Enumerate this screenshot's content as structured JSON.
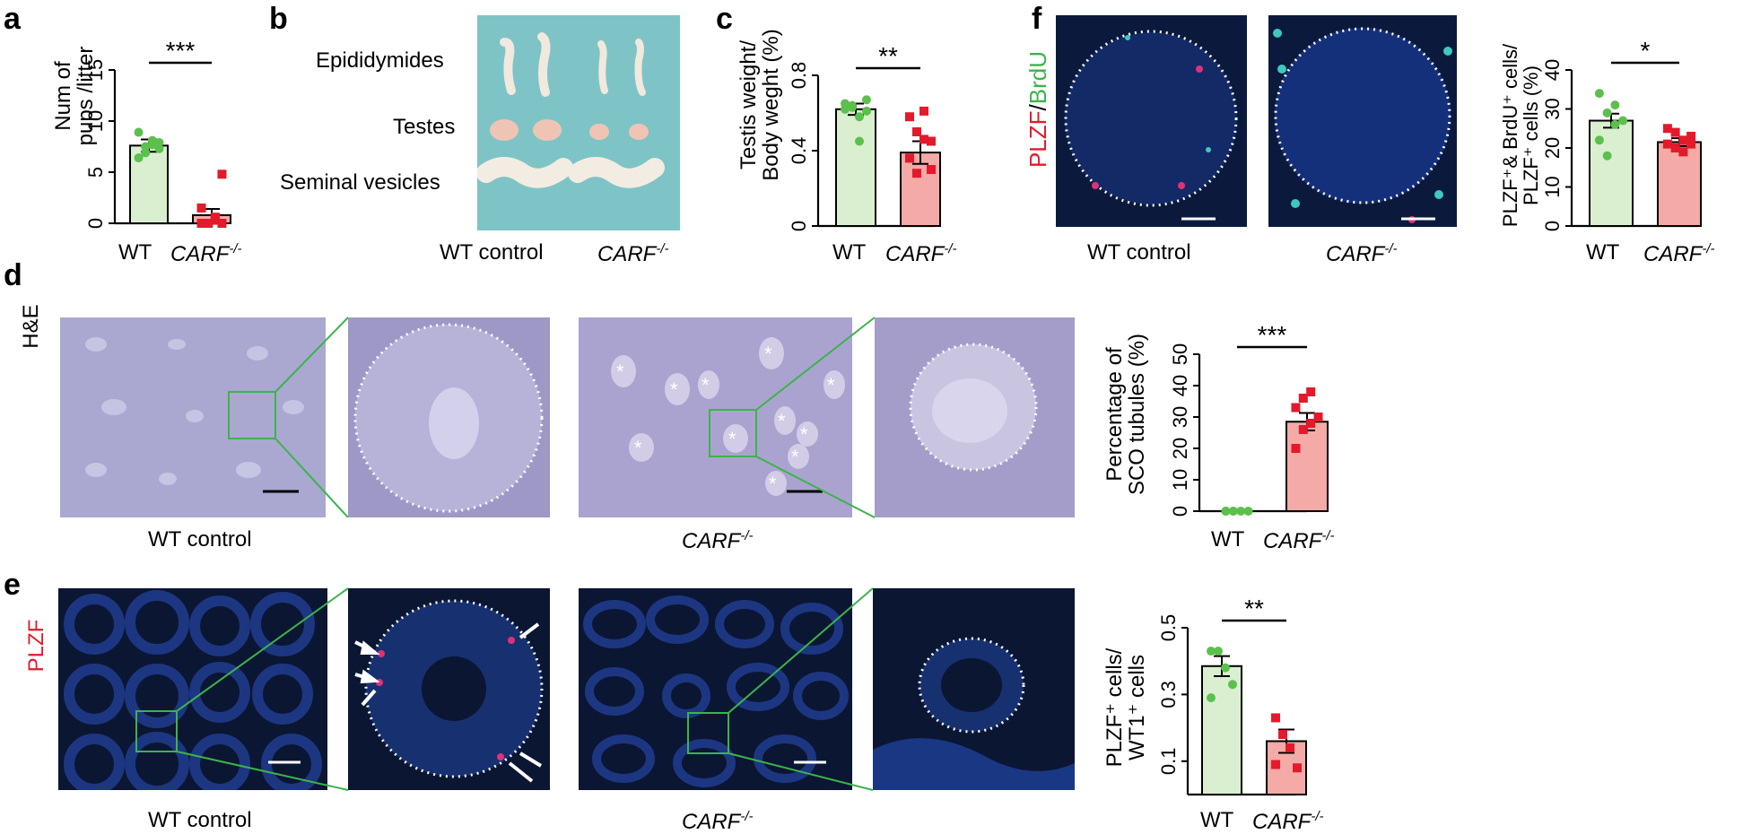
{
  "panels": {
    "a": "a",
    "b": "b",
    "c": "c",
    "d": "d",
    "e": "e",
    "f": "f"
  },
  "colors": {
    "wt_fill": "#d9efd0",
    "wt_dot": "#5cc04c",
    "ko_fill": "#f4aaa6",
    "ko_dot": "#e31a2c",
    "he_bg": "#b8b4d6",
    "fluor_bg": "#0a1530",
    "roi_green": "#3cb44b"
  },
  "genotypes": {
    "wt": "WT",
    "ko": "CARF",
    "ko_sup": "-/-",
    "wt_control": "WT control"
  },
  "panel_b": {
    "epididymides": "Epididymides",
    "testes": "Testes",
    "seminal_vesicles": "Seminal vesicles"
  },
  "panel_d": {
    "stain": "H&E"
  },
  "panel_e": {
    "marker": "PLZF"
  },
  "panel_f": {
    "marker_red": "PLZF",
    "slash": "/",
    "marker_green": "BrdU"
  },
  "chart_data": [
    {
      "id": "a",
      "type": "bar",
      "categories": [
        "WT",
        "CARF-/-"
      ],
      "values": [
        7.6,
        0.8
      ],
      "sem": [
        0.6,
        0.6
      ],
      "points": [
        [
          6.4,
          7.5,
          8.1,
          7.3,
          8.9,
          6.9,
          7.7,
          7.9
        ],
        [
          0,
          0,
          0.3,
          0,
          1.5,
          0,
          0.6,
          4.8
        ]
      ],
      "ylabel_line1": "Num of",
      "ylabel_line2": "pups /litter",
      "yticks": [
        "0",
        "5",
        "10",
        "15"
      ],
      "ylim": [
        0,
        15
      ],
      "significance": "***"
    },
    {
      "id": "c",
      "type": "bar",
      "categories": [
        "WT",
        "CARF-/-"
      ],
      "values": [
        0.62,
        0.39
      ],
      "sem": [
        0.03,
        0.06
      ],
      "points": [
        [
          0.65,
          0.63,
          0.58,
          0.67,
          0.62,
          0.64,
          0.45,
          0.61
        ],
        [
          0.36,
          0.28,
          0.46,
          0.3,
          0.58,
          0.5,
          0.61,
          0.45
        ]
      ],
      "ylabel_line1": "Testis weight/",
      "ylabel_line2": "Body weght (%)",
      "yticks": [
        "0",
        "0.4",
        "0.8"
      ],
      "ylim": [
        0,
        0.8
      ],
      "significance": "**"
    },
    {
      "id": "d",
      "type": "bar",
      "categories": [
        "WT",
        "CARF-/-"
      ],
      "values": [
        0,
        28.5
      ],
      "sem": [
        0.3,
        2.8
      ],
      "points": [
        [
          0,
          0,
          0,
          0,
          0,
          0
        ],
        [
          20,
          26,
          28,
          30,
          33,
          36,
          38
        ]
      ],
      "ylabel_line1": "Percentage of",
      "ylabel_line2": "SCO  tubules (%)",
      "yticks": [
        "0",
        "10",
        "20",
        "30",
        "40",
        "50"
      ],
      "ytick_label_text": "0 10 20 30 40 50",
      "ylim": [
        0,
        50
      ],
      "significance": "***"
    },
    {
      "id": "e",
      "type": "bar",
      "categories": [
        "WT",
        "CARF-/-"
      ],
      "values": [
        0.385,
        0.16
      ],
      "sem": [
        0.03,
        0.035
      ],
      "points": [
        [
          0.43,
          0.43,
          0.38,
          0.33,
          0.29
        ],
        [
          0.23,
          0.18,
          0.14,
          0.08,
          0.09
        ]
      ],
      "ylabel_line1": "PLZF⁺ cells/",
      "ylabel_line2": "WT1⁺ cells",
      "yticks": [
        "0.1",
        "0.3",
        "0.5"
      ],
      "ylim": [
        0,
        0.5
      ],
      "significance": "**"
    },
    {
      "id": "f",
      "type": "bar",
      "categories": [
        "WT",
        "CARF-/-"
      ],
      "values": [
        27,
        21.5
      ],
      "sem": [
        1.8,
        1.0
      ],
      "points": [
        [
          34,
          29,
          31,
          27,
          22,
          18,
          26
        ],
        [
          25,
          24,
          22,
          21,
          21,
          20,
          19,
          23
        ]
      ],
      "ylabel_line1": "PLZF⁺& BrdU⁺ cells/",
      "ylabel_line2": "PLZF⁺ cells (%)",
      "yticks": [
        "0",
        "10",
        "20",
        "30",
        "40"
      ],
      "ylim": [
        0,
        40
      ],
      "significance": "*"
    }
  ]
}
